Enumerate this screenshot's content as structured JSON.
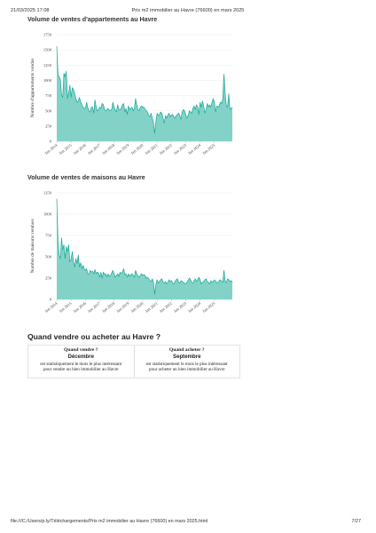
{
  "header": {
    "datetime": "21/03/2025 17:08",
    "page_title": "Prix m2 immobilier au Havre (76600) en mars 2025"
  },
  "footer": {
    "path": "file:///C:/Users/p.ly/Téléchargements/Prix m2 immobilier au Havre (76600) en mars 2025.html",
    "page": "7/27"
  },
  "colors": {
    "fill": "#82d2c8",
    "line": "#16a596",
    "grid": "#ececec",
    "axis": "#bbbbbb"
  },
  "chart_data": [
    {
      "type": "area",
      "title": "Volume de ventes d'appartements au Havre",
      "ylabel": "Nombre d'appartements vendus",
      "ylim": [
        0,
        1750
      ],
      "yticks": [
        0,
        250,
        500,
        750,
        1000,
        1250,
        1500,
        1750
      ],
      "xticks": [
        "Jan 2014",
        "Jan 2015",
        "Jan 2016",
        "Jan 2017",
        "Jan 2018",
        "Jan 2019",
        "Jan 2020",
        "Jan 2021",
        "Jan 2022",
        "Jan 2023",
        "Jan 2024",
        "Jan 2025"
      ],
      "x_start": "Jan 2014",
      "x_step": "month",
      "values": [
        1560,
        1100,
        1050,
        1020,
        760,
        720,
        1120,
        1060,
        1150,
        700,
        800,
        920,
        720,
        880,
        850,
        780,
        700,
        640,
        660,
        720,
        650,
        600,
        560,
        540,
        540,
        640,
        550,
        500,
        480,
        560,
        560,
        460,
        680,
        560,
        500,
        520,
        560,
        540,
        620,
        600,
        520,
        500,
        520,
        540,
        500,
        510,
        520,
        640,
        560,
        510,
        480,
        600,
        520,
        520,
        540,
        600,
        620,
        480,
        540,
        440,
        580,
        520,
        540,
        560,
        500,
        540,
        700,
        600,
        520,
        500,
        560,
        580,
        560,
        560,
        520,
        500,
        480,
        420,
        400,
        460,
        380,
        300,
        130,
        320,
        460,
        420,
        440,
        480,
        460,
        380,
        300,
        420,
        380,
        430,
        460,
        400,
        430,
        440,
        400,
        380,
        420,
        440,
        460,
        420,
        360,
        480,
        520,
        500,
        440,
        380,
        420,
        500,
        480,
        460,
        540,
        580,
        520,
        600,
        560,
        440,
        640,
        560,
        660,
        580,
        460,
        520,
        620,
        560,
        600,
        560,
        640,
        700,
        640,
        480,
        580,
        560,
        580,
        640,
        620,
        700,
        1100,
        780,
        580,
        560,
        780,
        520,
        540,
        560
      ]
    },
    {
      "type": "area",
      "title": "Volume de ventes de maisons au Havre",
      "ylabel": "Nombre de maisons vendues",
      "ylim": [
        0,
        1250
      ],
      "yticks": [
        0,
        250,
        500,
        750,
        1000,
        1250
      ],
      "xticks": [
        "Jan 2014",
        "Jan 2015",
        "Jan 2016",
        "Jan 2017",
        "Jan 2018",
        "Jan 2019",
        "Jan 2020",
        "Jan 2021",
        "Jan 2022",
        "Jan 2023",
        "Jan 2024",
        "Jan 2025"
      ],
      "x_start": "Jan 2014",
      "x_step": "month",
      "values": [
        1180,
        700,
        520,
        480,
        720,
        580,
        640,
        480,
        620,
        560,
        640,
        440,
        470,
        560,
        440,
        380,
        480,
        420,
        520,
        380,
        430,
        360,
        400,
        360,
        340,
        360,
        300,
        300,
        340,
        320,
        330,
        300,
        350,
        300,
        320,
        310,
        260,
        320,
        250,
        320,
        290,
        300,
        260,
        300,
        270,
        280,
        310,
        340,
        300,
        260,
        280,
        300,
        270,
        320,
        300,
        320,
        360,
        290,
        300,
        260,
        300,
        270,
        290,
        300,
        280,
        260,
        340,
        300,
        270,
        260,
        280,
        300,
        280,
        290,
        280,
        250,
        260,
        240,
        220,
        210,
        240,
        200,
        60,
        180,
        230,
        190,
        210,
        230,
        240,
        200,
        190,
        210,
        180,
        200,
        230,
        210,
        220,
        190,
        180,
        210,
        230,
        240,
        200,
        190,
        220,
        210,
        200,
        190,
        180,
        200,
        220,
        250,
        230,
        200,
        190,
        220,
        240,
        210,
        230,
        260,
        230,
        180,
        200,
        210,
        230,
        240,
        210,
        200,
        180,
        220,
        200,
        210,
        230,
        210,
        200,
        190,
        220,
        230,
        210,
        200,
        340,
        210,
        200,
        240,
        230,
        210,
        220,
        200
      ]
    }
  ],
  "section": {
    "title": "Quand vendre ou acheter au Havre ?"
  },
  "info": {
    "sell": {
      "question": "Quand vendre ?",
      "answer": "Décembre",
      "desc1": "est statistiquement le mois le plus intéressant",
      "desc2": "pour vendre un bien immobilier au Havre"
    },
    "buy": {
      "question": "Quand acheter ?",
      "answer": "Septembre",
      "desc1": "est statistiquement le mois le plus intéressant",
      "desc2": "pour acheter un bien immobilier au Havre"
    }
  }
}
